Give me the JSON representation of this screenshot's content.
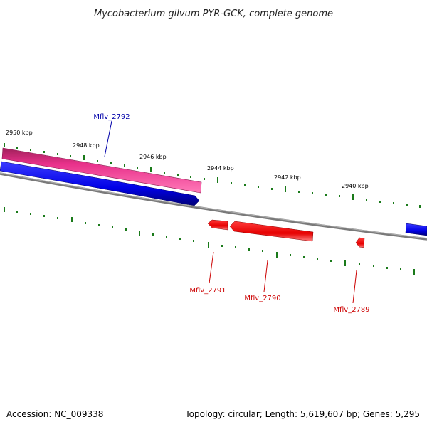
{
  "title": "Mycobacterium gilvum PYR-GCK, complete genome",
  "scale_labels": [
    "2950 kbp",
    "2948 kbp",
    "2946 kbp",
    "2944 kbp",
    "2942 kbp",
    "2940 kbp"
  ],
  "genes": {
    "forward": [
      {
        "name": "Mflv_2792"
      }
    ],
    "reverse": [
      {
        "name": "Mflv_2791"
      },
      {
        "name": "Mflv_2790"
      },
      {
        "name": "Mflv_2789"
      }
    ]
  },
  "footer": {
    "accession": "Accession: NC_009338",
    "summary": "Topology: circular; Length: 5,619,607 bp; Genes: 5,295"
  },
  "colors": {
    "forward_gene": "#0000ee",
    "reverse_gene": "#ee0000",
    "highlight_gene": "#ee2a88",
    "backbone": "#808080",
    "ticks": "#1a7a1a",
    "forward_label": "#0000aa",
    "reverse_label": "#cc0000"
  }
}
